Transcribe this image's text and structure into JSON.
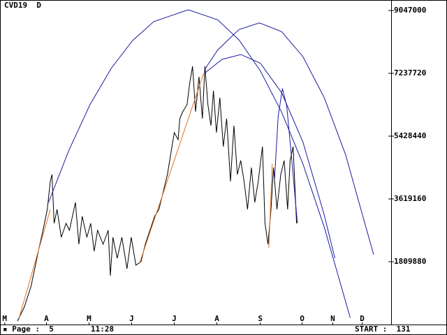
{
  "chart_data": {
    "type": "line",
    "title": "CVD19  D",
    "xlim": [
      -0.11,
      9.07
    ],
    "ylim": [
      0,
      9250000
    ],
    "xticks": [
      {
        "value": 0,
        "label": "M"
      },
      {
        "value": 0.98,
        "label": "A"
      },
      {
        "value": 1.98,
        "label": "M"
      },
      {
        "value": 2.98,
        "label": "J"
      },
      {
        "value": 3.98,
        "label": "J"
      },
      {
        "value": 4.98,
        "label": "A"
      },
      {
        "value": 6.0,
        "label": "S"
      },
      {
        "value": 6.98,
        "label": "O"
      },
      {
        "value": 7.7,
        "label": "N"
      },
      {
        "value": 8.39,
        "label": "D"
      }
    ],
    "yticks": [
      1809880,
      3619160,
      5428440,
      7237720,
      9047000
    ],
    "series": [
      {
        "color": "#000000",
        "x": [
          0.3,
          0.46,
          0.62,
          0.79,
          0.9,
          1.0,
          1.07,
          1.11,
          1.16,
          1.23,
          1.33,
          1.44,
          1.52,
          1.66,
          1.74,
          1.82,
          1.93,
          2.02,
          2.1,
          2.18,
          2.31,
          2.43,
          2.48,
          2.54,
          2.64,
          2.75,
          2.87,
          2.97,
          3.08,
          3.2,
          3.3,
          3.41,
          3.52,
          3.62,
          3.74,
          3.82,
          3.9,
          3.98,
          4.07,
          4.11,
          4.18,
          4.28,
          4.34,
          4.41,
          4.48,
          4.56,
          4.64,
          4.7,
          4.77,
          4.84,
          4.9,
          4.97,
          5.05,
          5.13,
          5.21,
          5.3,
          5.38,
          5.46,
          5.54,
          5.62,
          5.7,
          5.79,
          5.87,
          5.95,
          6.05,
          6.11,
          6.18,
          6.25,
          6.31,
          6.39,
          6.48,
          6.56,
          6.64,
          6.7,
          6.77,
          6.85
        ],
        "values": [
          100000,
          503000,
          1106000,
          2112000,
          2715000,
          3318000,
          4123000,
          4324000,
          2916000,
          3318000,
          2514000,
          2916000,
          2715000,
          3519000,
          2313000,
          3117000,
          2514000,
          2916000,
          2112000,
          2715000,
          2313000,
          2715000,
          1408000,
          2514000,
          1910000,
          2514000,
          1609000,
          2514000,
          1709000,
          1810000,
          2313000,
          2715000,
          3117000,
          3318000,
          3921000,
          4324000,
          4927000,
          5530000,
          5329000,
          5932000,
          6134000,
          6335000,
          6938000,
          7441000,
          6134000,
          7139000,
          5932000,
          7441000,
          6335000,
          5731000,
          6737000,
          5530000,
          6536000,
          5128000,
          5932000,
          4123000,
          5731000,
          4324000,
          4726000,
          4123000,
          3318000,
          4525000,
          3519000,
          4123000,
          5128000,
          2916000,
          2313000,
          3318000,
          4525000,
          3318000,
          4324000,
          4726000,
          3318000,
          4726000,
          5128000,
          2916000
        ]
      },
      {
        "color": "#e07020",
        "x": [
          0.34,
          1.07
        ],
        "values": [
          201000,
          3318000
        ]
      },
      {
        "color": "#e07020",
        "x": [
          3.16,
          4.67
        ],
        "values": [
          1750000,
          7240000
        ]
      },
      {
        "color": "#e07020",
        "x": [
          6.2,
          6.28
        ],
        "values": [
          2212000,
          4626000
        ]
      },
      {
        "color": "#1a1aa0",
        "x": [
          1.03,
          1.5,
          2.0,
          2.5,
          3.0,
          3.5,
          4.31,
          5.0,
          5.5,
          6.0,
          6.5,
          7.0,
          7.5,
          8.11
        ],
        "values": [
          3520000,
          5000000,
          6330000,
          7380000,
          8180000,
          8730000,
          9070000,
          8780000,
          8200000,
          7310000,
          6120000,
          4630000,
          2810000,
          200000
        ]
      },
      {
        "color": "#1a1aa0",
        "x": [
          4.69,
          5.0,
          5.5,
          5.98,
          6.5,
          7.0,
          7.5,
          8.0,
          8.66
        ],
        "values": [
          7340000,
          7910000,
          8500000,
          8690000,
          8440000,
          7720000,
          6540000,
          4900000,
          2010000
        ]
      },
      {
        "color": "#1a1aa0",
        "x": [
          4.69,
          5.1,
          5.54,
          6.0,
          6.5,
          7.0,
          7.5,
          7.75
        ],
        "values": [
          7240000,
          7640000,
          7780000,
          7530000,
          6680000,
          5260000,
          3160000,
          1910000
        ]
      },
      {
        "color": "#1a1aa0",
        "x": [
          6.33,
          6.42,
          6.52,
          6.62,
          6.72,
          6.87
        ],
        "values": [
          4120000,
          6000000,
          6800000,
          6300000,
          5000000,
          2920000
        ]
      }
    ]
  },
  "footer": {
    "page": "▪ Page :  5",
    "time": "11:28",
    "start": "START :  131"
  }
}
